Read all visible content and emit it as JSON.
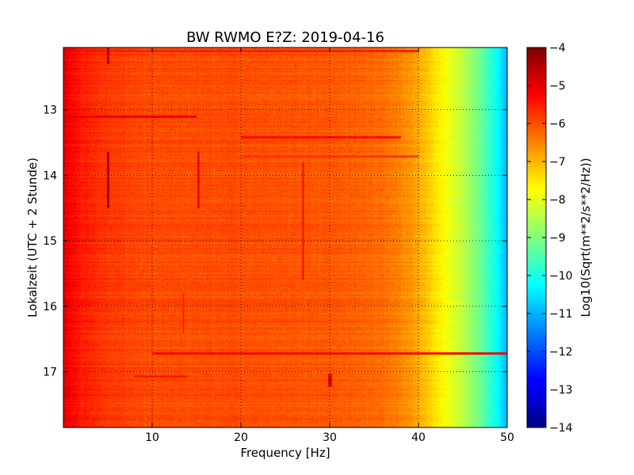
{
  "chart_data": {
    "type": "heatmap",
    "title": "BW RWMO E?Z: 2019-04-16",
    "xlabel": "Frequency [Hz]",
    "ylabel": "Lokalzeit (UTC + 2 Stunde)",
    "xlim": [
      0,
      50
    ],
    "ylim": [
      12.05,
      17.85
    ],
    "y_inverted": true,
    "x_ticks": [
      10,
      20,
      30,
      40,
      50
    ],
    "x_tick_labels": [
      "10",
      "20",
      "30",
      "40",
      "50"
    ],
    "y_ticks": [
      13,
      14,
      15,
      16,
      17
    ],
    "y_tick_labels": [
      "13",
      "14",
      "15",
      "16",
      "17"
    ],
    "grid": true,
    "colormap": "jet",
    "colorbar": {
      "label": "Log10(Sqrt(m**2/s**2/Hz))",
      "min": -14,
      "max": -4,
      "ticks": [
        -4,
        -5,
        -6,
        -7,
        -8,
        -9,
        -10,
        -11,
        -12,
        -13,
        -14
      ],
      "tick_labels": [
        "−4",
        "−5",
        "−6",
        "−7",
        "−8",
        "−9",
        "−10",
        "−11",
        "−12",
        "−13",
        "−14"
      ]
    },
    "spectrum_profile": {
      "frequency_hz": [
        0,
        2,
        5,
        10,
        20,
        30,
        36,
        39,
        41,
        43,
        45,
        47,
        49,
        50
      ],
      "level": [
        -5.0,
        -5.5,
        -5.8,
        -6.0,
        -6.0,
        -6.1,
        -6.3,
        -6.7,
        -7.2,
        -7.8,
        -8.4,
        -9.2,
        -10.3,
        -11.0
      ]
    },
    "horizontal_bands": [
      {
        "hour": 12.1,
        "f_start": 0,
        "f_end": 40,
        "level": -5.3
      },
      {
        "hour": 13.1,
        "f_start": 0,
        "f_end": 15,
        "level": -4.9
      },
      {
        "hour": 13.42,
        "f_start": 20,
        "f_end": 38,
        "level": -5.1
      },
      {
        "hour": 13.7,
        "f_start": 20,
        "f_end": 40,
        "level": -5.6
      },
      {
        "hour": 16.72,
        "f_start": 10,
        "f_end": 50,
        "level": -5.0
      },
      {
        "hour": 17.07,
        "f_start": 8,
        "f_end": 14,
        "level": -5.3
      }
    ],
    "vertical_lines": [
      {
        "frequency_hz": 5,
        "h_start": 12.05,
        "h_end": 12.3,
        "level": -4.2
      },
      {
        "frequency_hz": 5,
        "h_start": 13.65,
        "h_end": 14.5,
        "level": -4.1
      },
      {
        "frequency_hz": 15.2,
        "h_start": 13.65,
        "h_end": 14.5,
        "level": -4.9
      },
      {
        "frequency_hz": 27,
        "h_start": 13.8,
        "h_end": 15.6,
        "level": -5.2
      },
      {
        "frequency_hz": 13.5,
        "h_start": 15.8,
        "h_end": 16.4,
        "level": -5.4
      }
    ],
    "spots": [
      {
        "frequency_hz": 30,
        "hour": 17.12,
        "level": -4.8
      }
    ]
  }
}
